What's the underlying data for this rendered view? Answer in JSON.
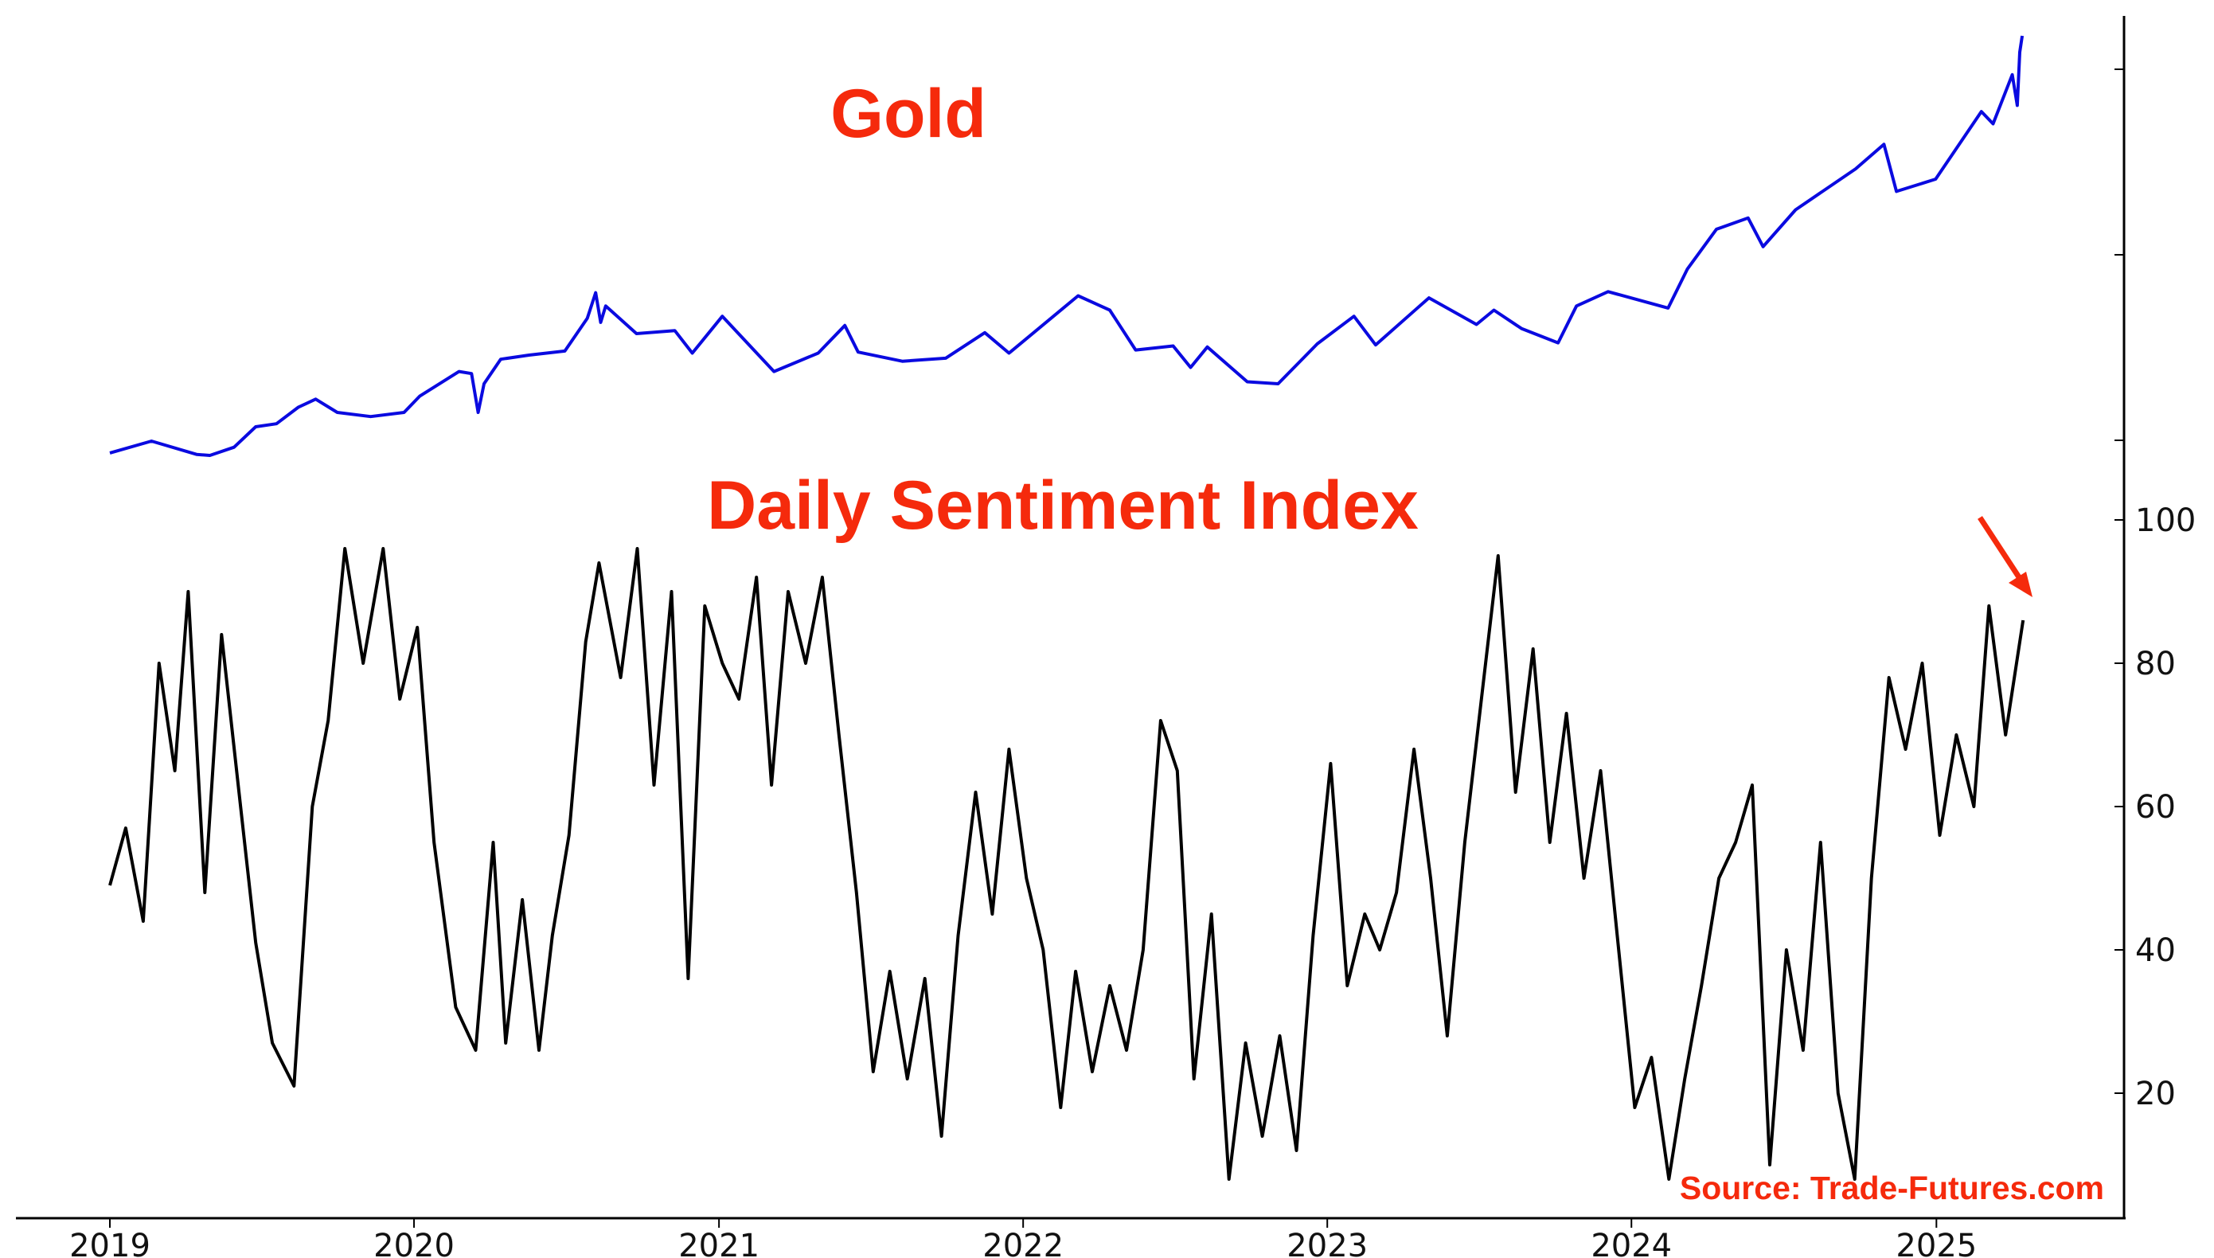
{
  "chart_data": [
    {
      "type": "line",
      "title": "Gold",
      "color": "#0a0ae0",
      "title_color": "#f52a0c",
      "right_axis_tick_labels": [],
      "x_range": [
        "2019-01-01",
        "2025-12-31"
      ],
      "note": "",
      "series": [
        {
          "values": [
            [
              "2019-01-01",
              1282
            ],
            [
              "2019-02-20",
              1340
            ],
            [
              "2019-04-15",
              1275
            ],
            [
              "2019-05-01",
              1270
            ],
            [
              "2019-05-30",
              1310
            ],
            [
              "2019-06-25",
              1410
            ],
            [
              "2019-07-20",
              1425
            ],
            [
              "2019-08-15",
              1505
            ],
            [
              "2019-09-05",
              1545
            ],
            [
              "2019-10-01",
              1480
            ],
            [
              "2019-11-10",
              1460
            ],
            [
              "2019-12-20",
              1480
            ],
            [
              "2020-01-08",
              1560
            ],
            [
              "2020-02-24",
              1680
            ],
            [
              "2020-03-10",
              1670
            ],
            [
              "2020-03-18",
              1480
            ],
            [
              "2020-03-25",
              1620
            ],
            [
              "2020-04-14",
              1740
            ],
            [
              "2020-05-18",
              1760
            ],
            [
              "2020-06-30",
              1780
            ],
            [
              "2020-07-27",
              1940
            ],
            [
              "2020-08-06",
              2065
            ],
            [
              "2020-08-12",
              1920
            ],
            [
              "2020-08-18",
              2000
            ],
            [
              "2020-09-24",
              1865
            ],
            [
              "2020-11-09",
              1880
            ],
            [
              "2020-11-30",
              1770
            ],
            [
              "2021-01-05",
              1950
            ],
            [
              "2021-03-08",
              1680
            ],
            [
              "2021-04-30",
              1770
            ],
            [
              "2021-06-01",
              1905
            ],
            [
              "2021-06-17",
              1775
            ],
            [
              "2021-08-09",
              1730
            ],
            [
              "2021-09-30",
              1745
            ],
            [
              "2021-11-16",
              1870
            ],
            [
              "2021-12-15",
              1770
            ],
            [
              "2022-03-08",
              2050
            ],
            [
              "2022-04-15",
              1980
            ],
            [
              "2022-05-16",
              1785
            ],
            [
              "2022-06-30",
              1805
            ],
            [
              "2022-07-21",
              1700
            ],
            [
              "2022-08-10",
              1800
            ],
            [
              "2022-09-27",
              1630
            ],
            [
              "2022-11-03",
              1620
            ],
            [
              "2022-12-20",
              1815
            ],
            [
              "2023-02-02",
              1950
            ],
            [
              "2023-02-28",
              1810
            ],
            [
              "2023-05-03",
              2040
            ],
            [
              "2023-06-29",
              1910
            ],
            [
              "2023-07-20",
              1980
            ],
            [
              "2023-08-22",
              1890
            ],
            [
              "2023-10-05",
              1820
            ],
            [
              "2023-10-27",
              2000
            ],
            [
              "2023-12-04",
              2070
            ],
            [
              "2024-02-14",
              1990
            ],
            [
              "2024-03-08",
              2180
            ],
            [
              "2024-04-12",
              2375
            ],
            [
              "2024-05-20",
              2430
            ],
            [
              "2024-06-07",
              2290
            ],
            [
              "2024-07-16",
              2470
            ],
            [
              "2024-09-26",
              2670
            ],
            [
              "2024-10-30",
              2790
            ],
            [
              "2024-11-14",
              2560
            ],
            [
              "2024-12-31",
              2620
            ],
            [
              "2025-02-24",
              2950
            ],
            [
              "2025-03-10",
              2890
            ],
            [
              "2025-04-02",
              3130
            ],
            [
              "2025-04-08",
              2980
            ],
            [
              "2025-04-11",
              3240
            ],
            [
              "2025-04-14",
              3320
            ]
          ]
        }
      ]
    },
    {
      "type": "line",
      "title": "Daily Sentiment Index",
      "color": "#000000",
      "title_color": "#f52a0c",
      "source_text": "Source: Trade-Futures.com",
      "source_color": "#f52a0c",
      "arrow_color": "#f52a0c",
      "x_ticks": [
        "2019",
        "2020",
        "2021",
        "2022",
        "2023",
        "2024",
        "2025"
      ],
      "y_ticks": [
        20,
        40,
        60,
        80,
        100
      ],
      "ylim": [
        3,
        103
      ],
      "y_axis_side": "right",
      "grid": false,
      "series": [
        {
          "values": [
            [
              "2019-01-01",
              49
            ],
            [
              "2019-01-20",
              57
            ],
            [
              "2019-02-10",
              44
            ],
            [
              "2019-03-01",
              80
            ],
            [
              "2019-03-20",
              65
            ],
            [
              "2019-04-05",
              90
            ],
            [
              "2019-04-25",
              48
            ],
            [
              "2019-05-15",
              84
            ],
            [
              "2019-06-05",
              62
            ],
            [
              "2019-06-25",
              41
            ],
            [
              "2019-07-15",
              27
            ],
            [
              "2019-08-10",
              21
            ],
            [
              "2019-09-01",
              60
            ],
            [
              "2019-09-20",
              72
            ],
            [
              "2019-10-10",
              96
            ],
            [
              "2019-11-01",
              80
            ],
            [
              "2019-11-25",
              96
            ],
            [
              "2019-12-15",
              75
            ],
            [
              "2020-01-05",
              85
            ],
            [
              "2020-01-25",
              55
            ],
            [
              "2020-02-20",
              32
            ],
            [
              "2020-03-15",
              26
            ],
            [
              "2020-04-05",
              55
            ],
            [
              "2020-04-20",
              27
            ],
            [
              "2020-05-10",
              47
            ],
            [
              "2020-05-30",
              26
            ],
            [
              "2020-06-15",
              42
            ],
            [
              "2020-07-05",
              56
            ],
            [
              "2020-07-25",
              83
            ],
            [
              "2020-08-10",
              94
            ],
            [
              "2020-09-05",
              78
            ],
            [
              "2020-09-25",
              96
            ],
            [
              "2020-10-15",
              63
            ],
            [
              "2020-11-05",
              90
            ],
            [
              "2020-11-25",
              36
            ],
            [
              "2020-12-15",
              88
            ],
            [
              "2021-01-05",
              80
            ],
            [
              "2021-01-25",
              75
            ],
            [
              "2021-02-15",
              92
            ],
            [
              "2021-03-05",
              63
            ],
            [
              "2021-03-25",
              90
            ],
            [
              "2021-04-15",
              80
            ],
            [
              "2021-05-05",
              92
            ],
            [
              "2021-05-25",
              70
            ],
            [
              "2021-06-15",
              48
            ],
            [
              "2021-07-05",
              23
            ],
            [
              "2021-07-25",
              37
            ],
            [
              "2021-08-15",
              22
            ],
            [
              "2021-09-05",
              36
            ],
            [
              "2021-09-25",
              14
            ],
            [
              "2021-10-15",
              42
            ],
            [
              "2021-11-05",
              62
            ],
            [
              "2021-11-25",
              45
            ],
            [
              "2021-12-15",
              68
            ],
            [
              "2022-01-05",
              50
            ],
            [
              "2022-01-25",
              40
            ],
            [
              "2022-02-15",
              18
            ],
            [
              "2022-03-05",
              37
            ],
            [
              "2022-03-25",
              23
            ],
            [
              "2022-04-15",
              35
            ],
            [
              "2022-05-05",
              26
            ],
            [
              "2022-05-25",
              40
            ],
            [
              "2022-06-15",
              72
            ],
            [
              "2022-07-05",
              65
            ],
            [
              "2022-07-25",
              22
            ],
            [
              "2022-08-15",
              45
            ],
            [
              "2022-09-05",
              8
            ],
            [
              "2022-09-25",
              27
            ],
            [
              "2022-10-15",
              14
            ],
            [
              "2022-11-05",
              28
            ],
            [
              "2022-11-25",
              12
            ],
            [
              "2022-12-15",
              42
            ],
            [
              "2023-01-05",
              66
            ],
            [
              "2023-01-25",
              35
            ],
            [
              "2023-02-15",
              45
            ],
            [
              "2023-03-05",
              40
            ],
            [
              "2023-03-25",
              48
            ],
            [
              "2023-04-15",
              68
            ],
            [
              "2023-05-05",
              50
            ],
            [
              "2023-05-25",
              28
            ],
            [
              "2023-06-15",
              55
            ],
            [
              "2023-07-05",
              75
            ],
            [
              "2023-07-25",
              95
            ],
            [
              "2023-08-15",
              62
            ],
            [
              "2023-09-05",
              82
            ],
            [
              "2023-09-25",
              55
            ],
            [
              "2023-10-15",
              73
            ],
            [
              "2023-11-05",
              50
            ],
            [
              "2023-11-25",
              65
            ],
            [
              "2023-12-15",
              42
            ],
            [
              "2024-01-05",
              18
            ],
            [
              "2024-01-25",
              25
            ],
            [
              "2024-02-15",
              8
            ],
            [
              "2024-03-05",
              22
            ],
            [
              "2024-03-25",
              35
            ],
            [
              "2024-04-15",
              50
            ],
            [
              "2024-05-05",
              55
            ],
            [
              "2024-05-25",
              63
            ],
            [
              "2024-06-15",
              10
            ],
            [
              "2024-07-05",
              40
            ],
            [
              "2024-07-25",
              26
            ],
            [
              "2024-08-15",
              55
            ],
            [
              "2024-09-05",
              20
            ],
            [
              "2024-09-25",
              8
            ],
            [
              "2024-10-15",
              50
            ],
            [
              "2024-11-05",
              78
            ],
            [
              "2024-11-25",
              68
            ],
            [
              "2024-12-15",
              80
            ],
            [
              "2025-01-05",
              56
            ],
            [
              "2025-01-25",
              70
            ],
            [
              "2025-02-15",
              60
            ],
            [
              "2025-03-05",
              88
            ],
            [
              "2025-03-25",
              70
            ],
            [
              "2025-04-15",
              86
            ]
          ]
        }
      ]
    }
  ]
}
